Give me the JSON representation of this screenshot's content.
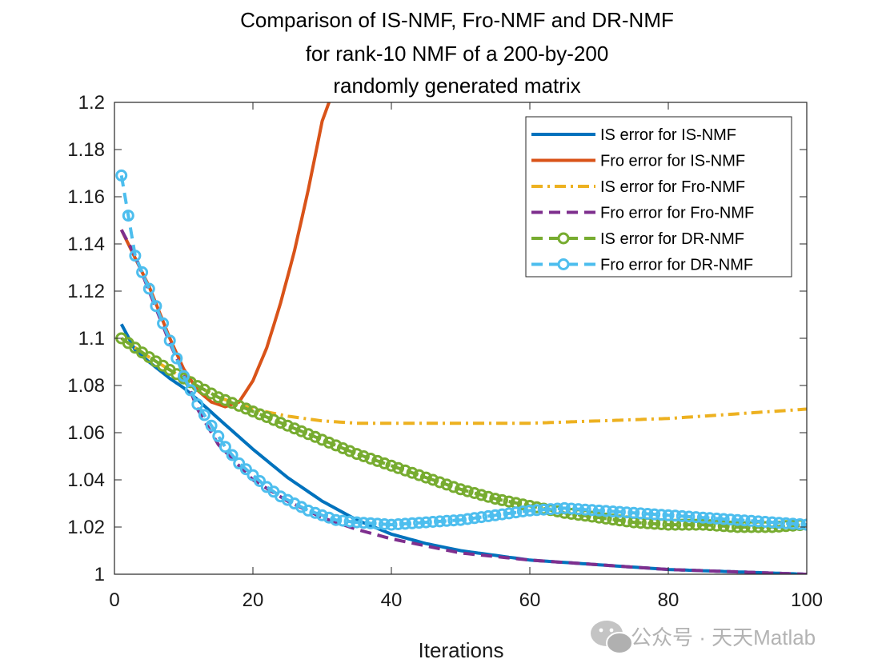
{
  "chart_data": {
    "type": "line",
    "title": [
      "Comparison of IS-NMF, Fro-NMF and DR-NMF",
      "for rank-10 NMF of a 200-by-200",
      "randomly generated matrix"
    ],
    "xlabel": "Iterations",
    "ylabel": "",
    "xlim": [
      0,
      100
    ],
    "ylim": [
      1.0,
      1.2
    ],
    "xticks": [
      0,
      20,
      40,
      60,
      80,
      100
    ],
    "yticks": [
      1,
      1.02,
      1.04,
      1.06,
      1.08,
      1.1,
      1.12,
      1.14,
      1.16,
      1.18,
      1.2
    ],
    "ytick_labels": [
      "1",
      "1.02",
      "1.04",
      "1.06",
      "1.08",
      "1.1",
      "1.12",
      "1.14",
      "1.16",
      "1.18",
      "1.2"
    ],
    "legend_position": "top-right",
    "series": [
      {
        "name": "IS error for IS-NMF",
        "color": "#0072BD",
        "style": "solid",
        "marker": "none",
        "x": [
          1,
          3,
          5,
          8,
          10,
          12,
          15,
          20,
          25,
          30,
          35,
          40,
          45,
          50,
          55,
          60,
          70,
          80,
          90,
          100
        ],
        "y": [
          1.106,
          1.095,
          1.09,
          1.083,
          1.079,
          1.074,
          1.066,
          1.053,
          1.041,
          1.031,
          1.023,
          1.017,
          1.013,
          1.01,
          1.008,
          1.006,
          1.004,
          1.002,
          1.001,
          1.0
        ]
      },
      {
        "name": "Fro error for IS-NMF",
        "color": "#D95319",
        "style": "solid",
        "marker": "none",
        "x": [
          1,
          3,
          5,
          8,
          10,
          12,
          14,
          16,
          18,
          20,
          22,
          24,
          26,
          28,
          30,
          31
        ],
        "y": [
          1.146,
          1.134,
          1.122,
          1.1,
          1.087,
          1.078,
          1.073,
          1.071,
          1.073,
          1.082,
          1.096,
          1.115,
          1.137,
          1.163,
          1.192,
          1.2
        ]
      },
      {
        "name": "IS error for Fro-NMF",
        "color": "#EDB120",
        "style": "dashdot",
        "marker": "none",
        "x": [
          1,
          5,
          10,
          15,
          20,
          25,
          30,
          35,
          40,
          45,
          50,
          55,
          60,
          70,
          80,
          90,
          100
        ],
        "y": [
          1.1,
          1.092,
          1.083,
          1.075,
          1.07,
          1.067,
          1.065,
          1.064,
          1.064,
          1.064,
          1.064,
          1.064,
          1.064,
          1.065,
          1.066,
          1.068,
          1.07
        ]
      },
      {
        "name": "Fro error for Fro-NMF",
        "color": "#7E2F8E",
        "style": "dashed",
        "marker": "none",
        "x": [
          1,
          3,
          5,
          8,
          10,
          12,
          15,
          20,
          25,
          30,
          35,
          40,
          45,
          50,
          60,
          70,
          80,
          90,
          100
        ],
        "y": [
          1.146,
          1.135,
          1.12,
          1.098,
          1.085,
          1.07,
          1.055,
          1.04,
          1.031,
          1.024,
          1.019,
          1.015,
          1.012,
          1.009,
          1.006,
          1.004,
          1.002,
          1.001,
          1.0
        ]
      },
      {
        "name": "IS error for DR-NMF",
        "color": "#77AC30",
        "style": "dashed",
        "marker": "circle",
        "x": [
          1,
          5,
          10,
          15,
          20,
          25,
          30,
          35,
          40,
          45,
          50,
          55,
          60,
          65,
          70,
          75,
          80,
          85,
          90,
          95,
          100
        ],
        "y": [
          1.1,
          1.092,
          1.083,
          1.075,
          1.069,
          1.063,
          1.057,
          1.051,
          1.046,
          1.041,
          1.036,
          1.032,
          1.029,
          1.026,
          1.024,
          1.022,
          1.021,
          1.021,
          1.02,
          1.02,
          1.021
        ]
      },
      {
        "name": "Fro error for DR-NMF",
        "color": "#4DBEEE",
        "style": "dashed",
        "marker": "circle",
        "x": [
          1,
          3,
          5,
          8,
          10,
          12,
          14,
          16,
          18,
          20,
          22,
          24,
          26,
          28,
          30,
          32,
          35,
          40,
          45,
          50,
          55,
          60,
          65,
          70,
          75,
          80,
          85,
          90,
          95,
          100
        ],
        "y": [
          1.169,
          1.135,
          1.121,
          1.099,
          1.084,
          1.072,
          1.063,
          1.054,
          1.047,
          1.042,
          1.037,
          1.033,
          1.03,
          1.027,
          1.025,
          1.023,
          1.022,
          1.021,
          1.022,
          1.023,
          1.025,
          1.027,
          1.028,
          1.027,
          1.026,
          1.025,
          1.024,
          1.023,
          1.022,
          1.021
        ]
      }
    ]
  },
  "watermark": {
    "text": "公众号 · 天天Matlab"
  }
}
